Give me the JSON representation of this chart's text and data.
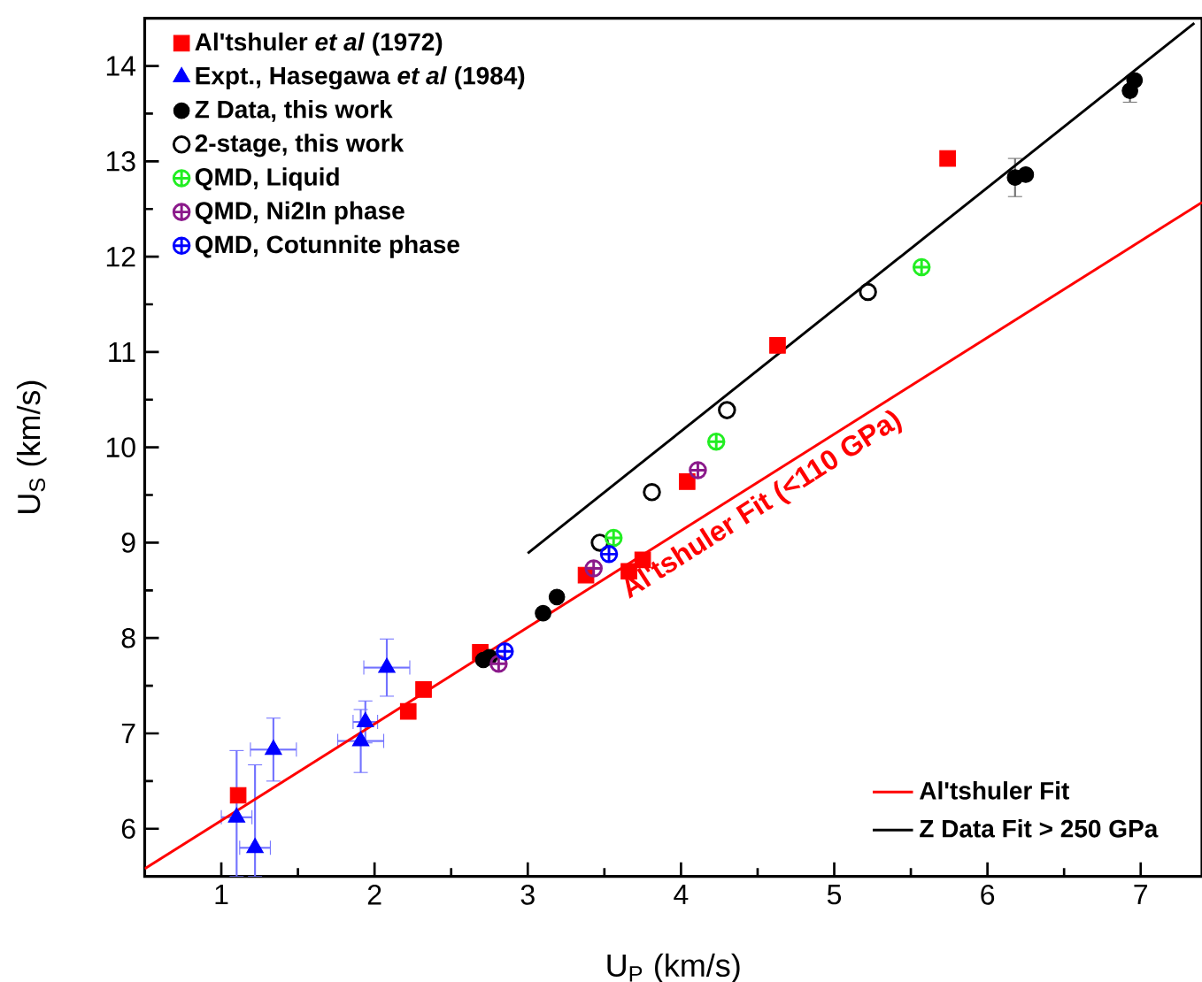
{
  "chart_data": {
    "type": "scatter",
    "xlabel": "U$_{P}$ (km/s)",
    "ylabel": "U$_{S}$ (km/s)",
    "xlim": [
      0.5,
      7.4
    ],
    "ylim": [
      5.5,
      14.5
    ],
    "xticks": [
      1,
      2,
      3,
      4,
      5,
      6,
      7
    ],
    "yticks": [
      6,
      7,
      8,
      9,
      10,
      11,
      12,
      13,
      14
    ],
    "grid": false,
    "legend": "top left",
    "annotations": [
      "Al'tshuler Fit (<110 GPa)"
    ],
    "series": [
      {
        "name": "Al'tshuler *et al* (1972)",
        "marker": "square",
        "color": "#ff0000",
        "x": [
          1.11,
          2.22,
          2.32,
          2.69,
          3.38,
          3.66,
          3.75,
          4.04,
          4.63,
          5.74
        ],
        "values": [
          6.35,
          7.23,
          7.46,
          7.85,
          8.66,
          8.7,
          8.82,
          9.64,
          11.07,
          13.03
        ]
      },
      {
        "name": "Expt., Hasegawa *et al* (1984)",
        "marker": "triangle",
        "color": "#0000ff",
        "x": [
          1.1,
          1.22,
          1.34,
          1.91,
          1.94,
          2.08
        ],
        "values": [
          6.12,
          5.8,
          6.83,
          6.92,
          7.12,
          7.69
        ],
        "errors": [
          [
            5.5,
            6.82
          ],
          [
            5.5,
            6.67
          ],
          0.33,
          0.33,
          0.22,
          0.3
        ],
        "xerrors": [
          0.1,
          0.1,
          0.15,
          0.15,
          0.08,
          0.15
        ]
      },
      {
        "name": "Z Data, this work",
        "marker": "circle",
        "color": "#000000",
        "x": [
          2.71,
          2.75,
          3.1,
          3.19,
          6.18,
          6.25,
          6.93,
          6.96
        ],
        "values": [
          7.77,
          7.8,
          8.26,
          8.43,
          12.83,
          12.86,
          13.74,
          13.85
        ],
        "errors": [
          null,
          null,
          null,
          null,
          0.2,
          null,
          0.12,
          null
        ]
      },
      {
        "name": "2-stage, this work",
        "marker": "circle open",
        "color": "#000000",
        "x": [
          3.47,
          3.81,
          4.3,
          5.22
        ],
        "values": [
          9.0,
          9.53,
          10.39,
          11.63
        ]
      },
      {
        "name": "QMD, Liquid",
        "marker": "cross",
        "color": "#22ee22",
        "x": [
          3.56,
          4.23,
          5.57
        ],
        "values": [
          9.05,
          10.06,
          11.89
        ]
      },
      {
        "name": "QMD, Ni2In phase",
        "marker": "cross",
        "color": "#8b1a8b",
        "x": [
          2.81,
          3.43,
          4.11
        ],
        "values": [
          7.73,
          8.73,
          9.76
        ]
      },
      {
        "name": "QMD, Cotunnite phase",
        "marker": "cross",
        "color": "#0000ff",
        "x": [
          2.85,
          3.53
        ],
        "values": [
          7.86,
          8.88
        ]
      },
      {
        "name": "Al'tshuler Fit",
        "type": "line",
        "line_style": "solid",
        "color": "#ff0000",
        "x": [
          0.5,
          7.4
        ],
        "values": [
          5.58,
          12.57
        ]
      },
      {
        "name": "Z Data Fit > 250 GPa",
        "type": "line",
        "line_style": "solid",
        "color": "#000000",
        "x": [
          3.0,
          7.35
        ],
        "values": [
          8.89,
          14.45
        ]
      }
    ]
  }
}
